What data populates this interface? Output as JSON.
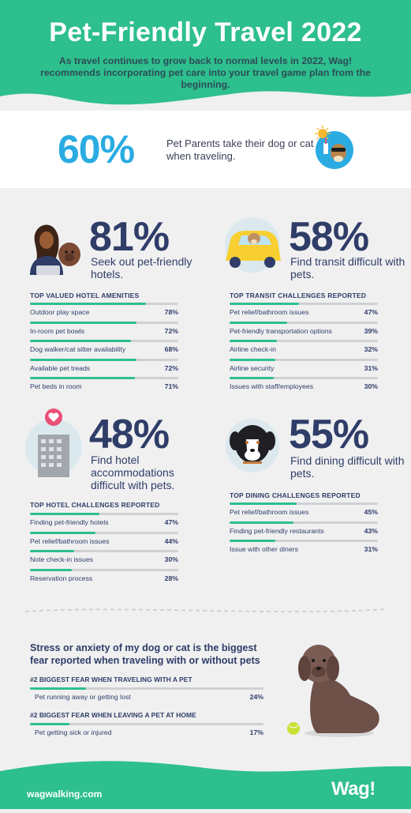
{
  "header": {
    "title": "Pet-Friendly Travel 2022",
    "subtitle": "As travel continues to grow back to normal levels in 2022, Wag! recommends incorporating pet care into your travel game plan from the beginning."
  },
  "intro": {
    "percent": "60%",
    "text": "Pet Parents take their dog or cat when traveling."
  },
  "colors": {
    "green": "#2dbf8d",
    "navy": "#2f3d68",
    "blue": "#2aace2",
    "track": "#cfd0d3"
  },
  "sections": [
    {
      "percent": "81%",
      "desc": "Seek out pet-friendly hotels.",
      "table_label": "TOP VALUED HOTEL AMENITIES",
      "items": [
        {
          "label": "Outdoor play space",
          "display": "78%",
          "value": 78
        },
        {
          "label": "In-room pet bowls",
          "display": "72%",
          "value": 72
        },
        {
          "label": "Dog walker/cat sitter availability",
          "display": "68%",
          "value": 68
        },
        {
          "label": "Available pet treads",
          "display": "72%",
          "value": 72
        },
        {
          "label": "Pet beds in room",
          "display": "71%",
          "value": 71
        }
      ]
    },
    {
      "percent": "58%",
      "desc": "Find transit difficult with pets.",
      "table_label": "TOP TRANSIT CHALLENGES REPORTED",
      "items": [
        {
          "label": "Pet relief/bathroom issues",
          "display": "47%",
          "value": 47
        },
        {
          "label": "Pet-friendly transportation options",
          "display": "39%",
          "value": 39
        },
        {
          "label": "Airline check-in",
          "display": "32%",
          "value": 32
        },
        {
          "label": "Airline security",
          "display": "31%",
          "value": 31
        },
        {
          "label": "Issues with staff/employees",
          "display": "30%",
          "value": 30
        }
      ]
    },
    {
      "percent": "48%",
      "desc": "Find hotel accommodations difficult with pets.",
      "table_label": "TOP HOTEL CHALLENGES REPORTED",
      "items": [
        {
          "label": "Finding pet-friendly hotels",
          "display": "47%",
          "value": 47
        },
        {
          "label": "Pet relief/bathroom issues",
          "display": "44%",
          "value": 44
        },
        {
          "label": "Note check-in issues",
          "display": "30%",
          "value": 30
        },
        {
          "label": "Reservation process",
          "display": "28%",
          "value": 28
        }
      ]
    },
    {
      "percent": "55%",
      "desc": "Find dining difficult with pets.",
      "table_label": "TOP DINING CHALLENGES REPORTED",
      "items": [
        {
          "label": "Pet relief/bathroom issues",
          "display": "45%",
          "value": 45
        },
        {
          "label": "Finding pet-friendly restaurants",
          "display": "43%",
          "value": 43
        },
        {
          "label": "Issue with other diners",
          "display": "31%",
          "value": 31
        }
      ]
    }
  ],
  "fears": {
    "heading": "Stress or anxiety of my dog or cat is the biggest fear reported when traveling with or without pets",
    "groups": [
      {
        "label": "#2 BIGGEST FEAR WHEN TRAVELING WITH A PET",
        "item": "Pet running away or getting lost",
        "display": "24%",
        "value": 24
      },
      {
        "label": "#2 BIGGEST FEAR WHEN LEAVING A PET AT HOME",
        "item": "Pet getting sick or injured",
        "display": "17%",
        "value": 17
      }
    ]
  },
  "footer": {
    "url": "wagwalking.com",
    "logo": "Wag!"
  },
  "chart_data": [
    {
      "type": "bar",
      "title": "TOP VALUED HOTEL AMENITIES",
      "categories": [
        "Outdoor play space",
        "In-room pet bowls",
        "Dog walker/cat sitter availability",
        "Available pet treads",
        "Pet beds in room"
      ],
      "values": [
        78,
        72,
        68,
        72,
        71
      ],
      "ylim": [
        0,
        100
      ]
    },
    {
      "type": "bar",
      "title": "TOP TRANSIT CHALLENGES REPORTED",
      "categories": [
        "Pet relief/bathroom issues",
        "Pet-friendly transportation options",
        "Airline check-in",
        "Airline security",
        "Issues with staff/employees"
      ],
      "values": [
        47,
        39,
        32,
        31,
        30
      ],
      "ylim": [
        0,
        100
      ]
    },
    {
      "type": "bar",
      "title": "TOP HOTEL CHALLENGES REPORTED",
      "categories": [
        "Finding pet-friendly hotels",
        "Pet relief/bathroom issues",
        "Note check-in issues",
        "Reservation process"
      ],
      "values": [
        47,
        44,
        30,
        28
      ],
      "ylim": [
        0,
        100
      ]
    },
    {
      "type": "bar",
      "title": "TOP DINING CHALLENGES REPORTED",
      "categories": [
        "Pet relief/bathroom issues",
        "Finding pet-friendly restaurants",
        "Issue with other diners"
      ],
      "values": [
        45,
        43,
        31
      ],
      "ylim": [
        0,
        100
      ]
    },
    {
      "type": "bar",
      "title": "#2 BIGGEST FEAR WHEN TRAVELING WITH A PET",
      "categories": [
        "Pet running away or getting lost"
      ],
      "values": [
        24
      ],
      "ylim": [
        0,
        100
      ]
    },
    {
      "type": "bar",
      "title": "#2 BIGGEST FEAR WHEN LEAVING A PET AT HOME",
      "categories": [
        "Pet getting sick or injured"
      ],
      "values": [
        17
      ],
      "ylim": [
        0,
        100
      ]
    }
  ]
}
